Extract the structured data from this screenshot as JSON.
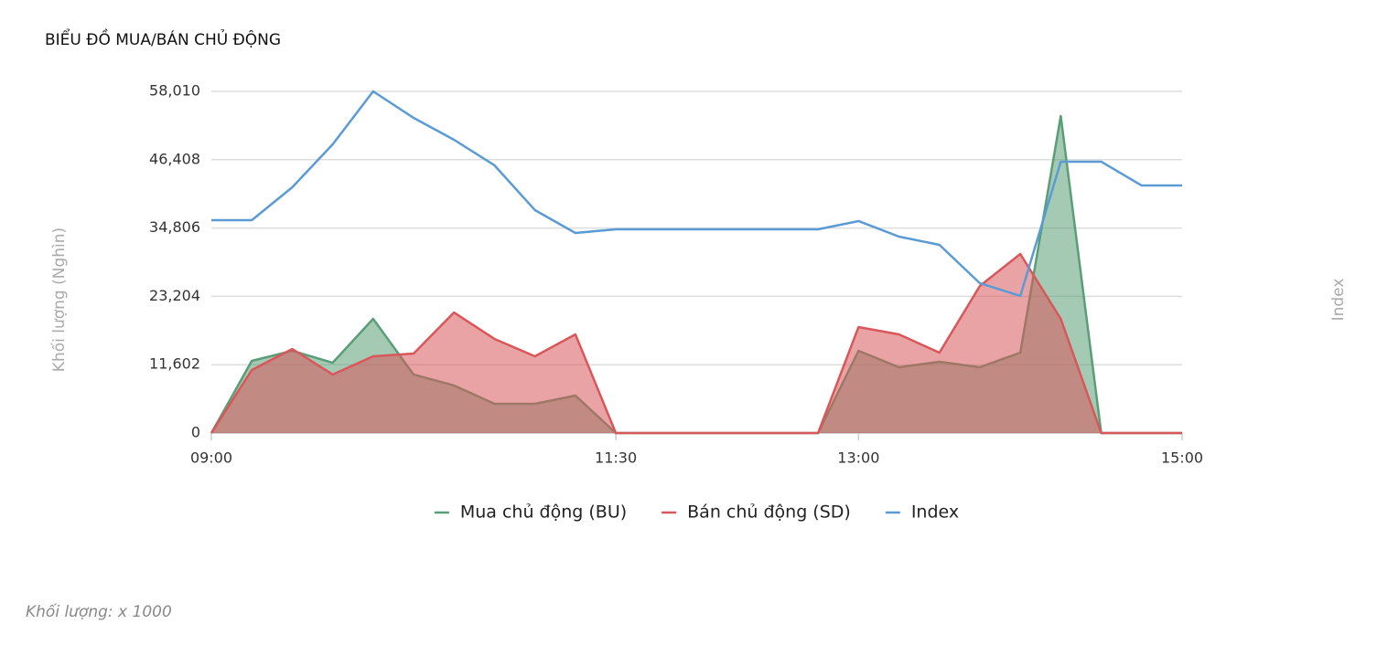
{
  "chart_data": {
    "type": "area",
    "title": "BIỂU ĐỒ MUA/BÁN CHỦ ĐỘNG",
    "ylabel": "Khối lượng (Nghìn)",
    "y2label": "Index",
    "footnote": "Khối lượng: x 1000",
    "x": [
      "09:00",
      "09:15",
      "09:30",
      "09:45",
      "10:00",
      "10:15",
      "10:30",
      "10:45",
      "11:00",
      "11:15",
      "11:30",
      "11:45",
      "12:00",
      "12:15",
      "12:30",
      "12:45",
      "13:00",
      "13:15",
      "13:30",
      "13:45",
      "14:00",
      "14:15",
      "14:30",
      "14:45",
      "15:00"
    ],
    "xlim": [
      "09:00",
      "15:00"
    ],
    "xticks": [
      "09:00",
      "11:30",
      "13:00",
      "15:00"
    ],
    "ylim": [
      0,
      58010
    ],
    "yticks": [
      0,
      {
        "value": 11602,
        "label": "11,602"
      },
      {
        "value": 23204,
        "label": "23,204"
      },
      {
        "value": 34806,
        "label": "34,806"
      },
      {
        "value": 46408,
        "label": "46,408"
      },
      {
        "value": 58010,
        "label": "58,010"
      }
    ],
    "grid": true,
    "legend": "bottom",
    "series": [
      {
        "name": "Mua chủ động (BU)",
        "color": "#5a9e77",
        "fill": true,
        "values": [
          0,
          12250,
          13960,
          11940,
          19390,
          9930,
          8070,
          4960,
          4960,
          6360,
          0,
          0,
          0,
          0,
          0,
          0,
          13960,
          11170,
          12100,
          11170,
          13650,
          53820,
          0,
          0,
          0
        ]
      },
      {
        "name": "Bán chủ động (SD)",
        "color": "#d9575b",
        "fill": true,
        "values": [
          0,
          10700,
          14270,
          9930,
          13030,
          13490,
          20470,
          15980,
          13030,
          16750,
          0,
          0,
          0,
          0,
          0,
          0,
          17990,
          16750,
          13650,
          24970,
          30400,
          19390,
          0,
          0,
          0
        ]
      },
      {
        "name": "Index",
        "color": "#5b9bd5",
        "fill": false,
        "values": [
          36140,
          36140,
          41720,
          49010,
          58010,
          53510,
          49790,
          45450,
          37850,
          33970,
          34590,
          34590,
          34590,
          34590,
          34590,
          34590,
          35990,
          33350,
          31950,
          25440,
          23270,
          46070,
          46070,
          42030,
          42030
        ]
      }
    ]
  }
}
